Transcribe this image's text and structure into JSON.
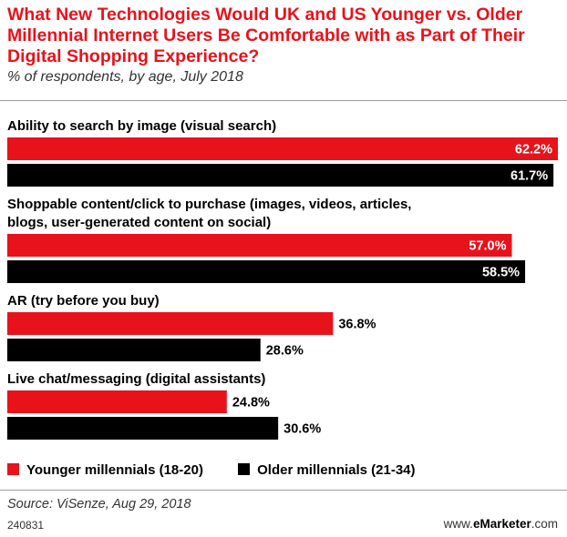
{
  "title": "What New Technologies Would UK and US Younger vs. Older Millennial Internet Users Be Comfortable with as Part of Their Digital Shopping Experience?",
  "subtitle": "% of respondents, by age, July 2018",
  "source": "Source: ViSenze, Aug 29, 2018",
  "code": "240831",
  "brand": {
    "prefix": "www.",
    "bold": "eMarketer",
    "suffix": ".com"
  },
  "colors": {
    "younger": "#e8121b",
    "older": "#000000"
  },
  "chart_data": {
    "type": "bar",
    "orientation": "horizontal",
    "categories": [
      [
        "Ability to search by image (visual search)"
      ],
      [
        "Shoppable content/click to purchase (images, videos, articles,",
        "blogs, user-generated content on social)"
      ],
      [
        "AR (try before you buy)"
      ],
      [
        "Live chat/messaging (digital assistants)"
      ]
    ],
    "series": [
      {
        "name": "Younger millennials (18-20)",
        "values": [
          62.2,
          57.0,
          36.8,
          24.8
        ]
      },
      {
        "name": "Older millennials (21-34)",
        "values": [
          61.7,
          58.5,
          28.6,
          30.6
        ]
      }
    ],
    "value_suffix": "%",
    "grid": false,
    "legend_position": "bottom-left"
  }
}
